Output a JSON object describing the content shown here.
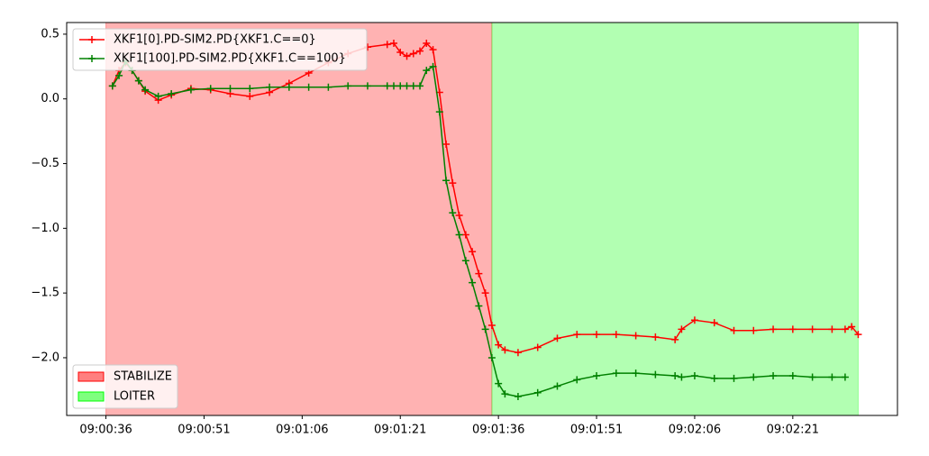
{
  "chart_data": {
    "type": "line",
    "x": [
      "09:00:37",
      "09:00:38",
      "09:00:39",
      "09:00:40",
      "09:00:41",
      "09:00:42",
      "09:00:44",
      "09:00:46",
      "09:00:49",
      "09:00:52",
      "09:00:55",
      "09:00:58",
      "09:01:01",
      "09:01:04",
      "09:01:07",
      "09:01:10",
      "09:01:13",
      "09:01:16",
      "09:01:19",
      "09:01:20",
      "09:01:21",
      "09:01:22",
      "09:01:23",
      "09:01:24",
      "09:01:25",
      "09:01:26",
      "09:01:27",
      "09:01:28",
      "09:01:29",
      "09:01:30",
      "09:01:31",
      "09:01:32",
      "09:01:33",
      "09:01:34",
      "09:01:35",
      "09:01:36",
      "09:01:37",
      "09:01:39",
      "09:01:42",
      "09:01:45",
      "09:01:48",
      "09:01:51",
      "09:01:54",
      "09:01:57",
      "09:02:00",
      "09:02:03",
      "09:02:04",
      "09:02:06",
      "09:02:09",
      "09:02:12",
      "09:02:15",
      "09:02:18",
      "09:02:21",
      "09:02:24",
      "09:02:27",
      "09:02:29",
      "09:02:30",
      "09:02:31"
    ],
    "series": [
      {
        "name": "XKF1[0].PD-SIM2.PD{XKF1.C==0}",
        "color": "#ff0000",
        "values": [
          0.1,
          0.22,
          0.28,
          0.22,
          0.14,
          0.06,
          -0.01,
          0.03,
          0.08,
          0.07,
          0.04,
          0.02,
          0.05,
          0.12,
          0.2,
          0.28,
          0.35,
          0.4,
          0.42,
          0.43,
          0.36,
          0.33,
          0.35,
          0.37,
          0.43,
          0.38,
          0.05,
          -0.35,
          -0.65,
          -0.9,
          -1.05,
          -1.18,
          -1.35,
          -1.5,
          -1.75,
          -1.9,
          -1.94,
          -1.96,
          -1.92,
          -1.85,
          -1.82,
          -1.82,
          -1.82,
          -1.83,
          -1.84,
          -1.86,
          -1.78,
          -1.71,
          -1.73,
          -1.79,
          -1.79,
          -1.78,
          -1.78,
          -1.78,
          -1.78,
          -1.78,
          -1.76,
          -1.82
        ]
      },
      {
        "name": "XKF1[100].PD-SIM2.PD{XKF1.C==100}",
        "color": "#008000",
        "values": [
          0.1,
          0.18,
          0.29,
          0.22,
          0.14,
          0.07,
          0.02,
          0.04,
          0.07,
          0.08,
          0.08,
          0.08,
          0.09,
          0.09,
          0.09,
          0.09,
          0.1,
          0.1,
          0.1,
          0.1,
          0.1,
          0.1,
          0.1,
          0.1,
          0.22,
          0.25,
          -0.1,
          -0.63,
          -0.88,
          -1.05,
          -1.25,
          -1.42,
          -1.6,
          -1.78,
          -2.0,
          -2.2,
          -2.28,
          -2.3,
          -2.27,
          -2.22,
          -2.17,
          -2.14,
          -2.12,
          -2.12,
          -2.13,
          -2.14,
          -2.15,
          -2.14,
          -2.16,
          -2.16,
          -2.15,
          -2.14,
          -2.14,
          -2.15,
          -2.15,
          -2.15,
          null,
          null
        ]
      }
    ],
    "regions": [
      {
        "name": "STABILIZE",
        "start": "09:00:36",
        "end": "09:01:35",
        "color": "#ff0000"
      },
      {
        "name": "LOITER",
        "start": "09:01:35",
        "end": "09:02:31",
        "color": "#00ff00"
      }
    ],
    "xlim": [
      "09:00:30",
      "09:02:37"
    ],
    "xticks": [
      "09:00:36",
      "09:00:51",
      "09:01:06",
      "09:01:21",
      "09:01:36",
      "09:01:51",
      "09:02:06",
      "09:02:21"
    ],
    "ylim": [
      -2.446,
      0.59
    ],
    "yticks": [
      {
        "value": -2.0,
        "label": "−2.0"
      },
      {
        "value": -1.5,
        "label": "−1.5"
      },
      {
        "value": -1.0,
        "label": "−1.0"
      },
      {
        "value": -0.5,
        "label": "−0.5"
      },
      {
        "value": 0.0,
        "label": "0.0"
      },
      0.5
    ],
    "legend": "upper left",
    "region_legend": "lower left",
    "grid": false
  }
}
